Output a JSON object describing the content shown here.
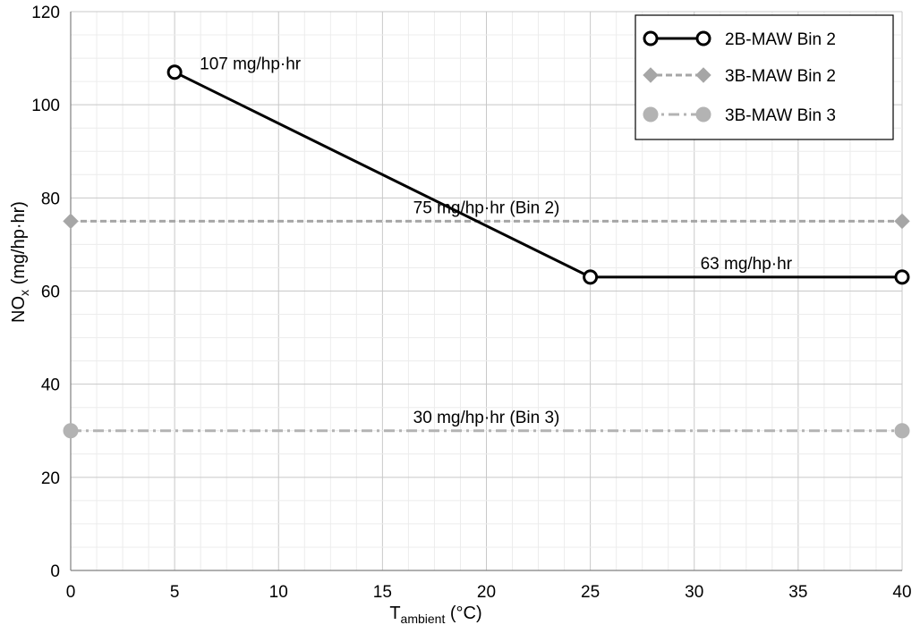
{
  "chart_data": {
    "type": "line",
    "xlabel": {
      "main": "T",
      "sub": "ambient",
      "suffix": " (°C)"
    },
    "ylabel": {
      "main": "NO",
      "sub": "x",
      "suffix": " (mg/hp·hr)"
    },
    "xlim": [
      0,
      40
    ],
    "ylim": [
      0,
      120
    ],
    "xticks": [
      0,
      5,
      10,
      15,
      20,
      25,
      30,
      35,
      40
    ],
    "yticks": [
      0,
      20,
      40,
      60,
      80,
      100,
      120
    ],
    "grid": true,
    "legend_position": "top-right",
    "series": [
      {
        "name": "2B-MAW Bin 2",
        "x": [
          5,
          25,
          40
        ],
        "y": [
          107,
          63,
          63
        ],
        "color": "#000000",
        "dash": "solid",
        "marker": "open-circle"
      },
      {
        "name": "3B-MAW Bin 2",
        "x": [
          0,
          40
        ],
        "y": [
          75,
          75
        ],
        "color": "#a6a6a6",
        "dash": "dashed",
        "marker": "diamond"
      },
      {
        "name": "3B-MAW Bin 3",
        "x": [
          0,
          40
        ],
        "y": [
          30,
          30
        ],
        "color": "#b3b3b3",
        "dash": "dash-dot",
        "marker": "filled-circle"
      }
    ],
    "annotations": [
      {
        "text": "107 mg/hp·hr",
        "x": 5,
        "y": 107
      },
      {
        "text": "75 mg/hp·hr (Bin 2)",
        "x": 20,
        "y": 75
      },
      {
        "text": "63 mg/hp·hr",
        "x": 32.5,
        "y": 63
      },
      {
        "text": "30 mg/hp·hr (Bin 3)",
        "x": 20,
        "y": 30
      }
    ]
  }
}
